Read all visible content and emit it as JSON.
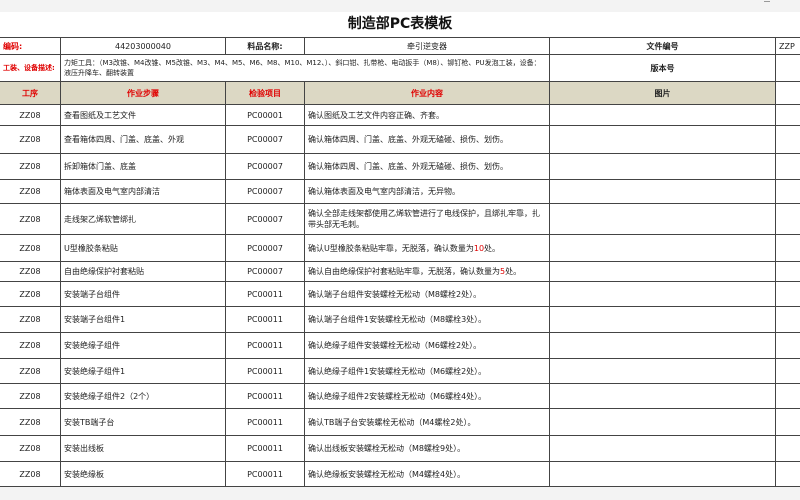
{
  "title": "制造部PC表模板",
  "info": {
    "code_label": "编码:",
    "code_value": "44203000040",
    "name_label": "料品名称:",
    "name_value": "牵引逆变器",
    "file_label": "文件编号",
    "file_value": "ZZP",
    "tools_label": "工装、设备描述:",
    "tools_value": "力矩工具：（M3改锥、M4改锥、M5改锥、M3、M4、M5、M6、M8、M10、M12、）、斜口钳、扎带枪、电动扳手（M8）、铆钉枪、PU发泡工装，设备：液压升降车、翻转装置",
    "version_label": "版本号"
  },
  "columns": [
    "工序",
    "作业步骤",
    "检验项目",
    "作业内容",
    "图片"
  ],
  "rows": [
    {
      "op": "ZZ08",
      "step": "查看图纸及工艺文件",
      "item": "PC00001",
      "content": "确认图纸及工艺文件内容正确、齐套。"
    },
    {
      "op": "ZZ08",
      "step": "查看箱体四周、门盖、底盖、外观",
      "item": "PC00007",
      "content": "确认箱体四周、门盖、底盖、外观无磕碰、损伤、划伤。"
    },
    {
      "op": "ZZ08",
      "step": "拆卸箱体门盖、底盖",
      "item": "PC00007",
      "content": "确认箱体四周、门盖、底盖、外观无磕碰、损伤、划伤。"
    },
    {
      "op": "ZZ08",
      "step": "箱体表面及电气室内部清洁",
      "item": "PC00007",
      "content": "确认箱体表面及电气室内部清洁，无异物。"
    },
    {
      "op": "ZZ08",
      "step": "走线架乙烯软管绑扎",
      "item": "PC00007",
      "content": "确认全部走线架都使用乙烯软管进行了电线保护，且绑扎牢靠，扎带头部无毛刺。"
    },
    {
      "op": "ZZ08",
      "step": "U型橡胶条粘贴",
      "item": "PC00007",
      "content_pre": "确认U型橡胶条粘贴牢靠，无脱落，确认数量为",
      "content_hl": "10",
      "content_post": "处。"
    },
    {
      "op": "ZZ08",
      "step": "自由绝缘保护衬套粘贴",
      "item": "PC00007",
      "content_pre": "确认自由绝缘保护衬套粘贴牢靠，无脱落，确认数量为",
      "content_hl": "5",
      "content_post": "处。"
    },
    {
      "op": "ZZ08",
      "step": "安装端子台组件",
      "item": "PC00011",
      "content": "确认端子台组件安装螺栓无松动（M8螺栓2处）。"
    },
    {
      "op": "ZZ08",
      "step": "安装端子台组件1",
      "item": "PC00011",
      "content": "确认端子台组件1安装螺栓无松动（M8螺栓3处）。"
    },
    {
      "op": "ZZ08",
      "step": "安装绝缘子组件",
      "item": "PC00011",
      "content": "确认绝缘子组件安装螺栓无松动（M6螺栓2处）。"
    },
    {
      "op": "ZZ08",
      "step": "安装绝缘子组件1",
      "item": "PC00011",
      "content": "确认绝缘子组件1安装螺栓无松动（M6螺栓2处）。"
    },
    {
      "op": "ZZ08",
      "step": "安装绝缘子组件2（2个）",
      "item": "PC00011",
      "content": "确认绝缘子组件2安装螺栓无松动（M6螺栓4处）。"
    },
    {
      "op": "ZZ08",
      "step": "安装TB端子台",
      "item": "PC00011",
      "content": "确认TB端子台安装螺栓无松动（M4螺栓2处）。"
    },
    {
      "op": "ZZ08",
      "step": "安装出线板",
      "item": "PC00011",
      "content": "确认出线板安装螺栓无松动（M8螺栓9处）。"
    },
    {
      "op": "ZZ08",
      "step": "安装绝缘板",
      "item": "PC00011",
      "content": "确认绝缘板安装螺栓无松动（M4螺栓4处）。"
    }
  ],
  "colors": {
    "header_bg": "#dcd8c4",
    "label_red": "#e00000"
  }
}
